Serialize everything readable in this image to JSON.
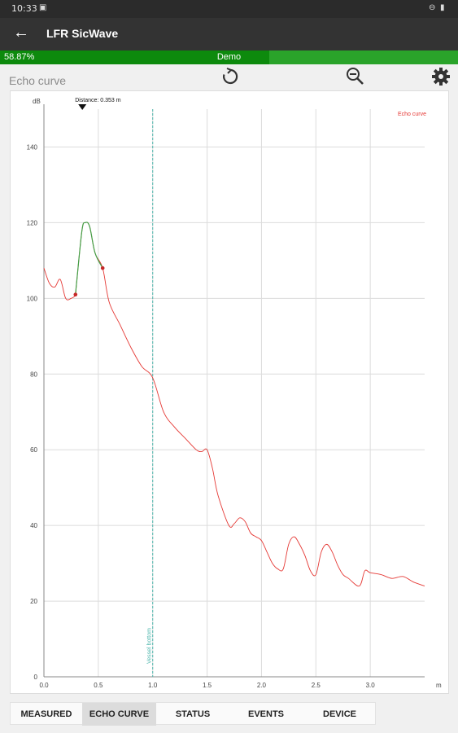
{
  "status_bar": {
    "time": "10:33"
  },
  "app": {
    "title": "LFR SicWave"
  },
  "progress": {
    "percent_label": "58.87%",
    "percent": 58.87,
    "mode": "Demo"
  },
  "page": {
    "title": "Echo curve"
  },
  "toolbar": {
    "icons": [
      "refresh-icon",
      "zoom-out-icon",
      "gear-icon"
    ]
  },
  "colors": {
    "echo_curve": "#e53935",
    "peak_segment": "#43a047",
    "vessel_bottom": "#4db6ac",
    "progress": "#0d8a0d"
  },
  "chart_data": {
    "type": "line",
    "ylabel": "dB",
    "xlabel": "m",
    "xlim": [
      0,
      3.5
    ],
    "ylim": [
      0,
      150
    ],
    "x_ticks": [
      "0.0",
      "0.5",
      "1.0",
      "1.5",
      "2.0",
      "2.5",
      "3.0"
    ],
    "x_tick_values": [
      0,
      0.5,
      1.0,
      1.5,
      2.0,
      2.5,
      3.0
    ],
    "y_ticks": [
      "0",
      "20",
      "40",
      "60",
      "80",
      "100",
      "120",
      "140"
    ],
    "y_tick_values": [
      0,
      20,
      40,
      60,
      80,
      100,
      120,
      140
    ],
    "legend": "Echo curve",
    "legend_position": "top-right",
    "grid": true,
    "distance_label": "Distance: 0.353 m",
    "distance_value": 0.353,
    "vessel_bottom_label": "Vessel bottom",
    "vessel_bottom_x": 1.0,
    "series": [
      {
        "name": "Echo curve",
        "x": [
          0.0,
          0.05,
          0.1,
          0.15,
          0.2,
          0.25,
          0.29,
          0.3,
          0.35,
          0.38,
          0.42,
          0.47,
          0.54,
          0.6,
          0.7,
          0.8,
          0.9,
          1.0,
          1.1,
          1.2,
          1.3,
          1.4,
          1.45,
          1.5,
          1.55,
          1.6,
          1.7,
          1.75,
          1.8,
          1.85,
          1.9,
          1.95,
          2.0,
          2.05,
          2.1,
          2.15,
          2.2,
          2.25,
          2.3,
          2.35,
          2.4,
          2.45,
          2.5,
          2.55,
          2.6,
          2.65,
          2.7,
          2.75,
          2.8,
          2.9,
          2.95,
          3.0,
          3.1,
          3.2,
          3.3,
          3.4,
          3.5
        ],
        "values": [
          108,
          104,
          103,
          105,
          100,
          100,
          101,
          104,
          118,
          120,
          119,
          112,
          108,
          99,
          93,
          87,
          82,
          79,
          70,
          66,
          63,
          60,
          59.5,
          60,
          55,
          48,
          40,
          40.5,
          42,
          41,
          38,
          37,
          36,
          33,
          30,
          28.5,
          28.5,
          35,
          37,
          35,
          32,
          28,
          27,
          33,
          35,
          33,
          29.5,
          27,
          26,
          24,
          28,
          27.5,
          27,
          26,
          26.5,
          25,
          24
        ]
      }
    ],
    "highlight": {
      "x_start": 0.29,
      "x_end": 0.54
    },
    "markers": [
      {
        "x": 0.29,
        "y": 101
      },
      {
        "x": 0.54,
        "y": 108
      }
    ]
  },
  "tabs": [
    "MEASURED",
    "ECHO CURVE",
    "STATUS",
    "EVENTS",
    "DEVICE"
  ],
  "active_tab": 1
}
